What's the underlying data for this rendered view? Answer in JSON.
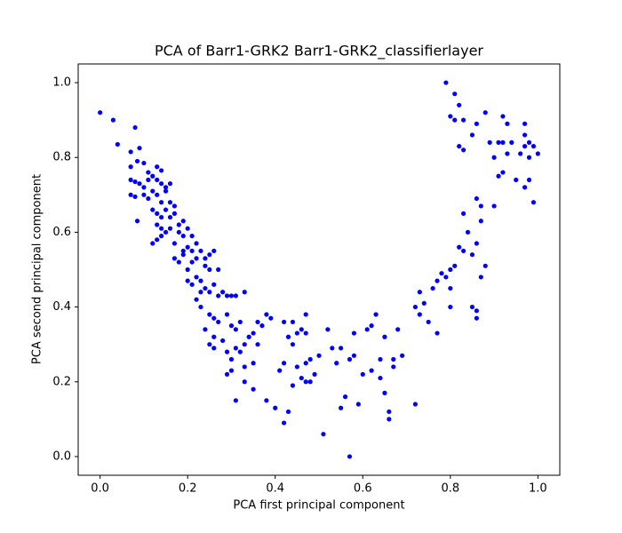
{
  "chart_data": {
    "type": "scatter",
    "title": "PCA of Barr1-GRK2 Barr1-GRK2_classifierlayer",
    "xlabel": "PCA first principal component",
    "ylabel": "PCA second principal component",
    "color": "#0000ff",
    "xlim": [
      -0.05,
      1.05
    ],
    "ylim": [
      -0.05,
      1.05
    ],
    "xticks": [
      {
        "value": 0,
        "label": "0.0"
      },
      0.2,
      0.4,
      0.6,
      0.8,
      {
        "value": 1,
        "label": "1.0"
      }
    ],
    "yticks": [
      {
        "value": 0,
        "label": "0.0"
      },
      0.2,
      0.4,
      0.6,
      0.8,
      {
        "value": 1,
        "label": "1.0"
      }
    ],
    "x": [
      0,
      0.03,
      0.04,
      0.07,
      0.08,
      0.07,
      0.09,
      0.085,
      0.1,
      0.11,
      0.07,
      0.08,
      0.09,
      0.1,
      0.07,
      0.08,
      0.1,
      0.11,
      0.12,
      0.13,
      0.14,
      0.13,
      0.14,
      0.15,
      0.16,
      0.15,
      0.12,
      0.11,
      0.13,
      0.14,
      0.16,
      0.17,
      0.12,
      0.13,
      0.14,
      0.15,
      0.16,
      0.17,
      0.18,
      0.19,
      0.13,
      0.14,
      0.15,
      0.16,
      0.18,
      0.19,
      0.2,
      0.21,
      0.085,
      0.13,
      0.14,
      0.12,
      0.17,
      0.19,
      0.2,
      0.21,
      0.22,
      0.23,
      0.17,
      0.18,
      0.19,
      0.2,
      0.21,
      0.22,
      0.24,
      0.25,
      0.26,
      0.24,
      0.25,
      0.27,
      0.2,
      0.21,
      0.22,
      0.23,
      0.24,
      0.25,
      0.23,
      0.26,
      0.27,
      0.28,
      0.29,
      0.3,
      0.31,
      0.33,
      0.22,
      0.23,
      0.25,
      0.26,
      0.27,
      0.29,
      0.3,
      0.31,
      0.32,
      0.24,
      0.26,
      0.28,
      0.25,
      0.29,
      0.31,
      0.32,
      0.33,
      0.34,
      0.35,
      0.36,
      0.37,
      0.38,
      0.39,
      0.36,
      0.26,
      0.3,
      0.33,
      0.35,
      0.29,
      0.3,
      0.33,
      0.35,
      0.31,
      0.38,
      0.4,
      0.42,
      0.43,
      0.41,
      0.42,
      0.44,
      0.45,
      0.46,
      0.47,
      0.48,
      0.47,
      0.48,
      0.49,
      0.5,
      0.44,
      0.45,
      0.43,
      0.42,
      0.44,
      0.46,
      0.47,
      0.47,
      0.51,
      0.52,
      0.53,
      0.54,
      0.55,
      0.55,
      0.56,
      0.57,
      0.57,
      0.58,
      0.58,
      0.59,
      0.6,
      0.61,
      0.62,
      0.62,
      0.63,
      0.64,
      0.64,
      0.65,
      0.65,
      0.66,
      0.66,
      0.67,
      0.67,
      0.68,
      0.69,
      0.72,
      0.72,
      0.73,
      0.73,
      0.74,
      0.75,
      0.76,
      0.77,
      0.77,
      0.78,
      0.79,
      0.8,
      0.8,
      0.81,
      0.82,
      0.83,
      0.83,
      0.84,
      0.85,
      0.85,
      0.86,
      0.86,
      0.86,
      0.87,
      0.87,
      0.88,
      0.86,
      0.87,
      0.9,
      0.8,
      0.79,
      0.81,
      0.8,
      0.81,
      0.82,
      0.83,
      0.85,
      0.86,
      0.88,
      0.82,
      0.83,
      0.89,
      0.9,
      0.91,
      0.92,
      0.93,
      0.92,
      0.91,
      0.93,
      0.92,
      0.94,
      0.95,
      0.96,
      0.97,
      0.97,
      0.98,
      0.98,
      0.97,
      0.98,
      0.99,
      1.0,
      0.99,
      0.97
    ],
    "y": [
      0.92,
      0.9,
      0.835,
      0.815,
      0.88,
      0.775,
      0.825,
      0.79,
      0.785,
      0.76,
      0.74,
      0.735,
      0.73,
      0.72,
      0.7,
      0.695,
      0.7,
      0.74,
      0.75,
      0.775,
      0.765,
      0.74,
      0.73,
      0.72,
      0.73,
      0.71,
      0.71,
      0.69,
      0.7,
      0.68,
      0.68,
      0.67,
      0.66,
      0.65,
      0.64,
      0.66,
      0.64,
      0.65,
      0.62,
      0.63,
      0.62,
      0.61,
      0.6,
      0.61,
      0.6,
      0.59,
      0.61,
      0.59,
      0.63,
      0.58,
      0.59,
      0.57,
      0.57,
      0.55,
      0.56,
      0.55,
      0.57,
      0.55,
      0.53,
      0.52,
      0.54,
      0.5,
      0.52,
      0.53,
      0.53,
      0.54,
      0.55,
      0.51,
      0.5,
      0.5,
      0.47,
      0.46,
      0.48,
      0.47,
      0.45,
      0.44,
      0.44,
      0.46,
      0.43,
      0.44,
      0.43,
      0.43,
      0.43,
      0.44,
      0.42,
      0.4,
      0.38,
      0.37,
      0.36,
      0.38,
      0.35,
      0.34,
      0.36,
      0.34,
      0.32,
      0.31,
      0.3,
      0.28,
      0.29,
      0.28,
      0.3,
      0.32,
      0.33,
      0.3,
      0.35,
      0.38,
      0.37,
      0.36,
      0.29,
      0.26,
      0.24,
      0.25,
      0.22,
      0.23,
      0.2,
      0.18,
      0.15,
      0.15,
      0.13,
      0.09,
      0.12,
      0.23,
      0.25,
      0.19,
      0.24,
      0.21,
      0.2,
      0.2,
      0.25,
      0.26,
      0.22,
      0.27,
      0.3,
      0.33,
      0.32,
      0.36,
      0.36,
      0.34,
      0.33,
      0.38,
      0.06,
      0.34,
      0.29,
      0.25,
      0.29,
      0.13,
      0.16,
      0,
      0.26,
      0.27,
      0.33,
      0.14,
      0.22,
      0.34,
      0.35,
      0.23,
      0.38,
      0.21,
      0.26,
      0.32,
      0.17,
      0.12,
      0.1,
      0.24,
      0.26,
      0.34,
      0.27,
      0.14,
      0.4,
      0.38,
      0.44,
      0.41,
      0.36,
      0.45,
      0.47,
      0.33,
      0.49,
      0.48,
      0.4,
      0.5,
      0.51,
      0.56,
      0.55,
      0.65,
      0.6,
      0.54,
      0.4,
      0.37,
      0.39,
      0.57,
      0.67,
      0.48,
      0.51,
      0.69,
      0.63,
      0.67,
      0.45,
      1.0,
      0.97,
      0.91,
      0.9,
      0.94,
      0.9,
      0.86,
      0.89,
      0.92,
      0.83,
      0.82,
      0.84,
      0.8,
      0.84,
      0.84,
      0.81,
      0.76,
      0.75,
      0.89,
      0.91,
      0.84,
      0.74,
      0.81,
      0.86,
      0.83,
      0.84,
      0.8,
      0.72,
      0.74,
      0.83,
      0.81,
      0.68,
      0.89
    ]
  }
}
